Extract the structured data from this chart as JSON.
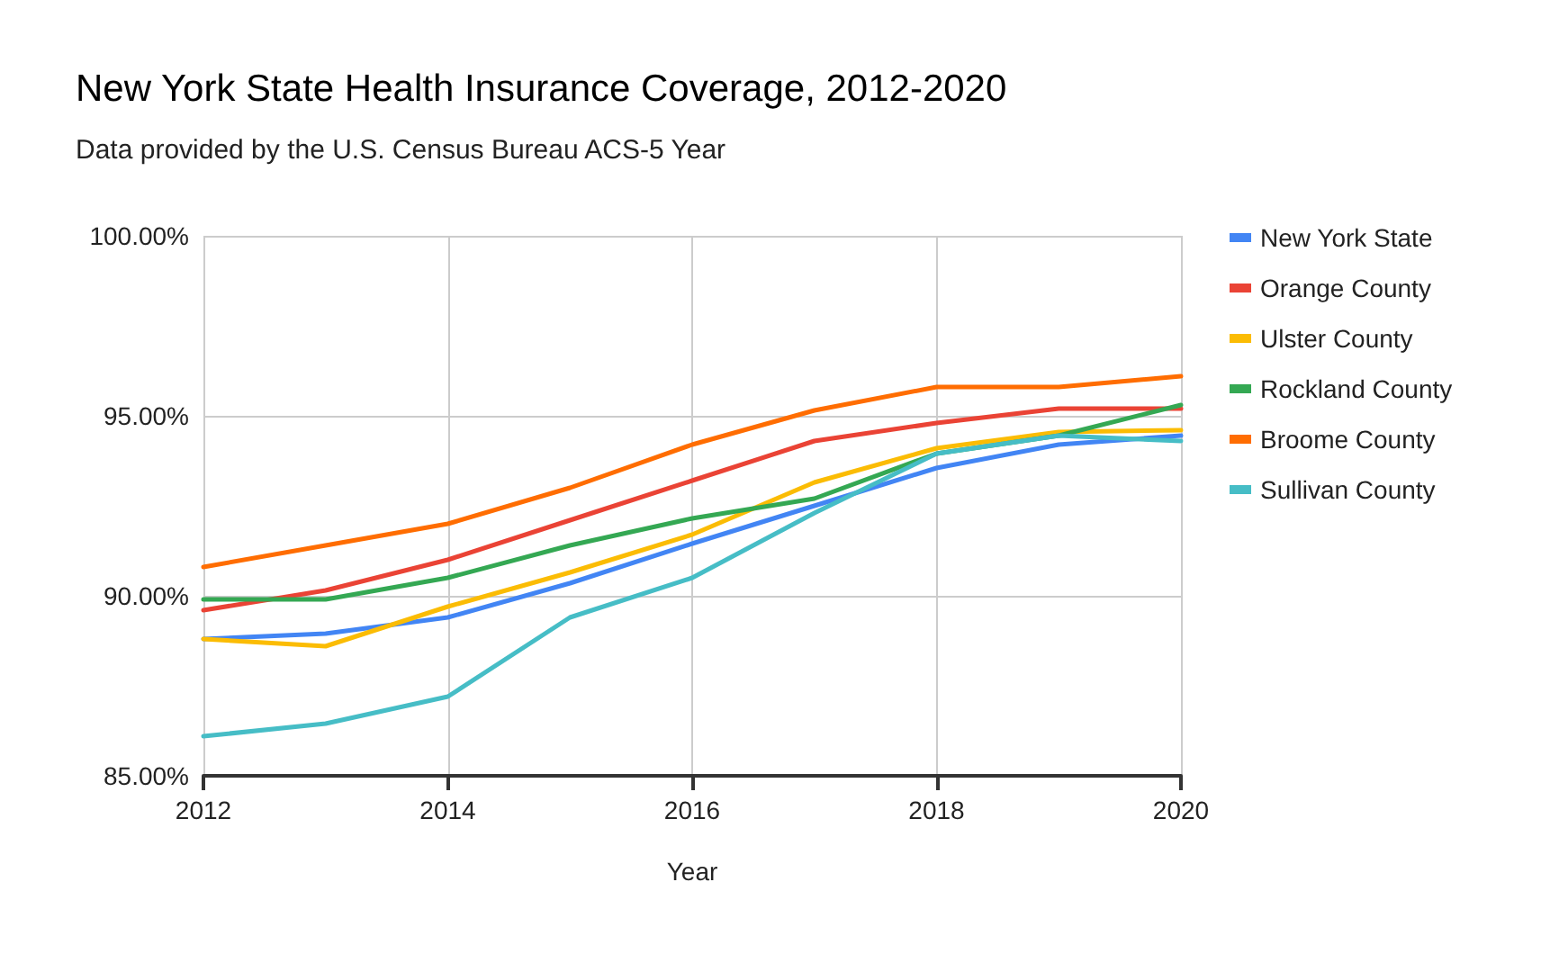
{
  "chart_data": {
    "type": "line",
    "title": "New York State Health Insurance Coverage, 2012-2020",
    "subtitle": "Data provided by the U.S. Census Bureau ACS-5 Year",
    "xlabel": "Year",
    "x": [
      2012,
      2013,
      2014,
      2015,
      2016,
      2017,
      2018,
      2019,
      2020
    ],
    "series": [
      {
        "name": "New York State",
        "color": "#4285f4",
        "values": [
          88.8,
          88.95,
          89.4,
          90.35,
          91.45,
          92.5,
          93.55,
          94.2,
          94.45
        ]
      },
      {
        "name": "Orange County",
        "color": "#ea4335",
        "values": [
          89.6,
          90.15,
          91.0,
          92.1,
          93.2,
          94.3,
          94.8,
          95.2,
          95.2
        ]
      },
      {
        "name": "Ulster County",
        "color": "#fbbc04",
        "values": [
          88.8,
          88.6,
          89.7,
          90.65,
          91.7,
          93.15,
          94.1,
          94.55,
          94.6
        ]
      },
      {
        "name": "Rockland County",
        "color": "#34a853",
        "values": [
          89.9,
          89.9,
          90.5,
          91.4,
          92.15,
          92.7,
          93.95,
          94.45,
          95.3
        ]
      },
      {
        "name": "Broome County",
        "color": "#ff6d01",
        "values": [
          90.8,
          91.4,
          92.0,
          93.0,
          94.2,
          95.15,
          95.8,
          95.8,
          96.1
        ]
      },
      {
        "name": "Sullivan County",
        "color": "#46bdc6",
        "values": [
          86.1,
          86.45,
          87.2,
          89.4,
          90.5,
          92.3,
          93.95,
          94.45,
          94.3
        ]
      }
    ],
    "xlim": [
      2012,
      2020
    ],
    "xticks": [
      2012,
      2014,
      2016,
      2018,
      2020
    ],
    "ylim": [
      85,
      100
    ],
    "yticks": [
      {
        "value": 85,
        "label": "85.00%"
      },
      {
        "value": 90,
        "label": "90.00%"
      },
      {
        "value": 95,
        "label": "95.00%"
      },
      {
        "value": 100,
        "label": "100.00%"
      }
    ],
    "grid": true,
    "legend": "right",
    "marker": "none",
    "line_style": "solid"
  }
}
